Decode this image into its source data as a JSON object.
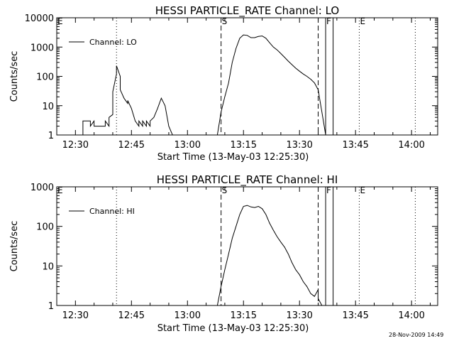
{
  "footer_timestamp": "28-Nov-2009 14:49",
  "chart_data": [
    {
      "type": "line",
      "title": "HESSI PARTICLE_RATE Channel: LO",
      "xlabel": "Start Time (13-May-03 12:25:30)",
      "ylabel": "Counts/sec",
      "y_scale": "log",
      "ylim": [
        1,
        10000
      ],
      "xlim": [
        "12:25",
        "14:07"
      ],
      "x_ticks": [
        "12:30",
        "12:45",
        "13:00",
        "13:15",
        "13:30",
        "13:45",
        "14:00"
      ],
      "y_ticks": [
        "1",
        "10",
        "100",
        "1000",
        "10000"
      ],
      "legend": {
        "position": "top-left",
        "entries": [
          "Channel: LO"
        ]
      },
      "markers": [
        {
          "label": "E",
          "time": "12:25",
          "style": "dotted"
        },
        {
          "label": "",
          "time": "12:41",
          "style": "dotted"
        },
        {
          "label": "S",
          "time": "13:09",
          "style": "dashed"
        },
        {
          "label": "",
          "time": "13:35",
          "style": "dashed"
        },
        {
          "label": "F",
          "time": "13:37",
          "style": "solid"
        },
        {
          "label": "",
          "time": "13:39",
          "style": "solid"
        },
        {
          "label": "E",
          "time": "13:46",
          "style": "dotted"
        },
        {
          "label": "",
          "time": "14:01",
          "style": "dotted"
        }
      ],
      "series": [
        {
          "name": "Channel: LO",
          "x": [
            "12:32",
            "12:32",
            "12:34",
            "12:34",
            "12:35",
            "12:35",
            "12:38",
            "12:38",
            "12:39",
            "12:39",
            "12:40",
            "12:40",
            "12:41",
            "12:41",
            "12:42",
            "12:42",
            "12:43",
            "12:44",
            "12:44",
            "12:45",
            "12:46",
            "12:47",
            "12:47",
            "12:48",
            "12:48",
            "12:49",
            "12:49",
            "12:50",
            "12:50",
            "12:51",
            "12:52",
            "12:53",
            "12:54",
            "12:55",
            "12:56",
            "12:57",
            "13:08",
            "13:09",
            "13:10",
            "13:11",
            "13:12",
            "13:13",
            "13:14",
            "13:15",
            "13:16",
            "13:17",
            "13:18",
            "13:19",
            "13:20",
            "13:21",
            "13:22",
            "13:23",
            "13:24",
            "13:25",
            "13:26",
            "13:27",
            "13:28",
            "13:29",
            "13:30",
            "13:31",
            "13:32",
            "13:33",
            "13:34",
            "13:35",
            "13:36",
            "13:37"
          ],
          "y": [
            1,
            3,
            3,
            2,
            3,
            2,
            2,
            3,
            2,
            4,
            5,
            30,
            120,
            230,
            100,
            35,
            18,
            12,
            15,
            8,
            3,
            2,
            3,
            2,
            3,
            2,
            3,
            2,
            3,
            4,
            8,
            18,
            10,
            2,
            1,
            1,
            1,
            6,
            20,
            60,
            300,
            900,
            2000,
            2600,
            2500,
            2100,
            2100,
            2300,
            2400,
            2000,
            1400,
            1000,
            800,
            600,
            450,
            330,
            250,
            190,
            150,
            120,
            100,
            80,
            60,
            35,
            6,
            1
          ]
        }
      ]
    },
    {
      "type": "line",
      "title": "HESSI PARTICLE_RATE Channel: HI",
      "xlabel": "Start Time (13-May-03 12:25:30)",
      "ylabel": "Counts/sec",
      "y_scale": "log",
      "ylim": [
        1,
        1000
      ],
      "xlim": [
        "12:25",
        "14:07"
      ],
      "x_ticks": [
        "12:30",
        "12:45",
        "13:00",
        "13:15",
        "13:30",
        "13:45",
        "14:00"
      ],
      "y_ticks": [
        "1",
        "10",
        "100",
        "1000"
      ],
      "legend": {
        "position": "top-left",
        "entries": [
          "Channel: HI"
        ]
      },
      "markers": [
        {
          "label": "E",
          "time": "12:25",
          "style": "dotted"
        },
        {
          "label": "",
          "time": "12:41",
          "style": "dotted"
        },
        {
          "label": "S",
          "time": "13:09",
          "style": "dashed"
        },
        {
          "label": "",
          "time": "13:35",
          "style": "dashed"
        },
        {
          "label": "F",
          "time": "13:37",
          "style": "solid"
        },
        {
          "label": "",
          "time": "13:39",
          "style": "solid"
        },
        {
          "label": "E",
          "time": "13:46",
          "style": "dotted"
        },
        {
          "label": "",
          "time": "14:01",
          "style": "dotted"
        }
      ],
      "series": [
        {
          "name": "Channel: HI",
          "x": [
            "13:08",
            "13:09",
            "13:10",
            "13:11",
            "13:12",
            "13:13",
            "13:14",
            "13:15",
            "13:16",
            "13:17",
            "13:18",
            "13:19",
            "13:20",
            "13:21",
            "13:22",
            "13:23",
            "13:24",
            "13:25",
            "13:26",
            "13:27",
            "13:28",
            "13:29",
            "13:30",
            "13:31",
            "13:32",
            "13:33",
            "13:34",
            "13:35",
            "13:35",
            "13:36"
          ],
          "y": [
            1,
            3,
            8,
            20,
            50,
            100,
            200,
            320,
            340,
            310,
            300,
            320,
            280,
            200,
            120,
            80,
            55,
            40,
            30,
            20,
            12,
            8,
            6,
            4,
            3,
            2,
            1.7,
            2.5,
            1.5,
            1
          ]
        }
      ]
    }
  ]
}
